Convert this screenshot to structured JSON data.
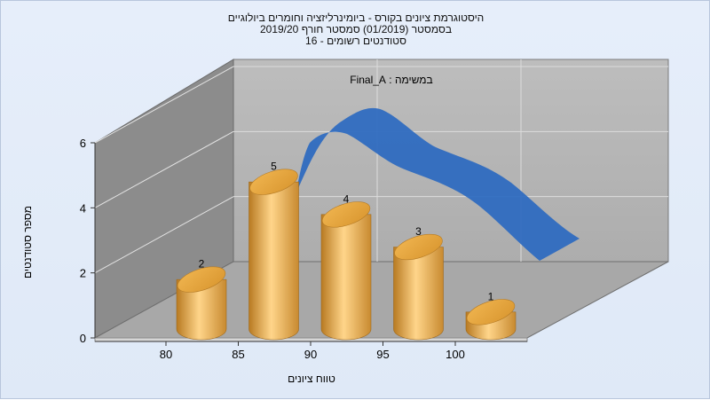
{
  "chart_data": {
    "type": "bar",
    "title": [
      "היסטוגרמת ציונים בקורס - ביומינרליזציה וחומרים ביולוגיים",
      "בסמסטר  (01/2019)  סמסטר חורף 2019/20",
      "סטודנטים רשומים - 16"
    ],
    "subtitle": "במשימה : Final_A",
    "xlabel": "טווח ציונים",
    "ylabel": "מספר סטודנטים",
    "categories": [
      "80",
      "85",
      "90",
      "95",
      "100"
    ],
    "x_ticks": [
      "80",
      "85",
      "90",
      "95",
      "100"
    ],
    "y_ticks": [
      "0",
      "2",
      "4",
      "6"
    ],
    "values": [
      2,
      5,
      4,
      3,
      1
    ],
    "ylim": [
      0,
      6
    ],
    "grid": true,
    "colors": {
      "bar": "#e8a23e",
      "curve": "#2f6bc0",
      "back_wall": "#b5b5b5",
      "side_wall": "#8c8c8c",
      "floor": "#a8a8a8",
      "background": "#e6eefa"
    }
  }
}
